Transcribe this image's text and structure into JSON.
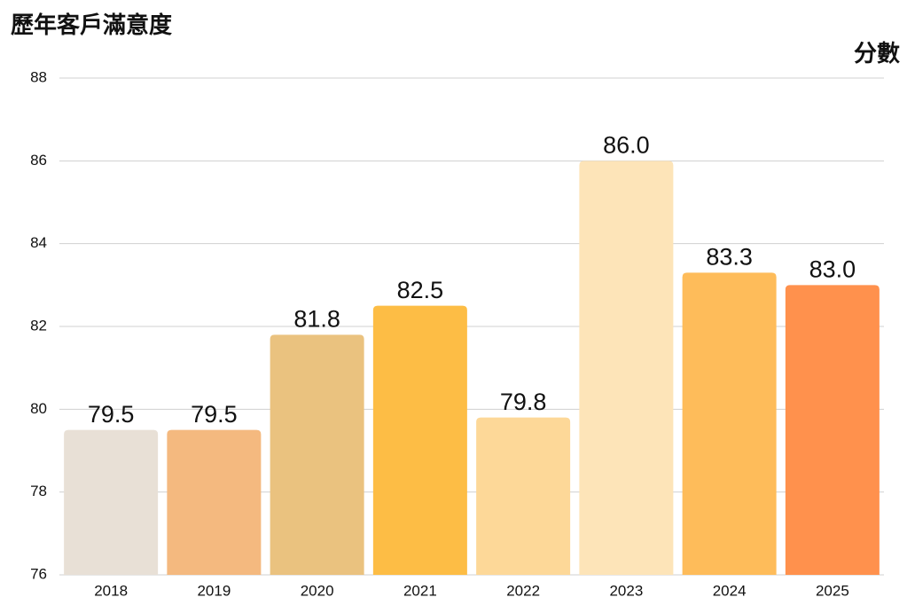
{
  "chart_data": {
    "type": "bar",
    "title": "歷年客戶滿意度",
    "y_label": "分數",
    "categories": [
      "2018",
      "2019",
      "2020",
      "2021",
      "2022",
      "2023",
      "2024",
      "2025"
    ],
    "values": [
      79.5,
      79.5,
      81.8,
      82.5,
      79.8,
      86.0,
      83.3,
      83.0
    ],
    "value_labels": [
      "79.5",
      "79.5",
      "81.8",
      "82.5",
      "79.8",
      "86.0",
      "83.3",
      "83.0"
    ],
    "colors": [
      "#e8e0d6",
      "#f4b97f",
      "#eac27f",
      "#fdbd45",
      "#fdd898",
      "#fde4b8",
      "#febc5a",
      "#ff914d"
    ],
    "ylim": [
      76,
      88
    ],
    "yticks": [
      76,
      78,
      80,
      82,
      84,
      86,
      88
    ],
    "grid": true
  }
}
